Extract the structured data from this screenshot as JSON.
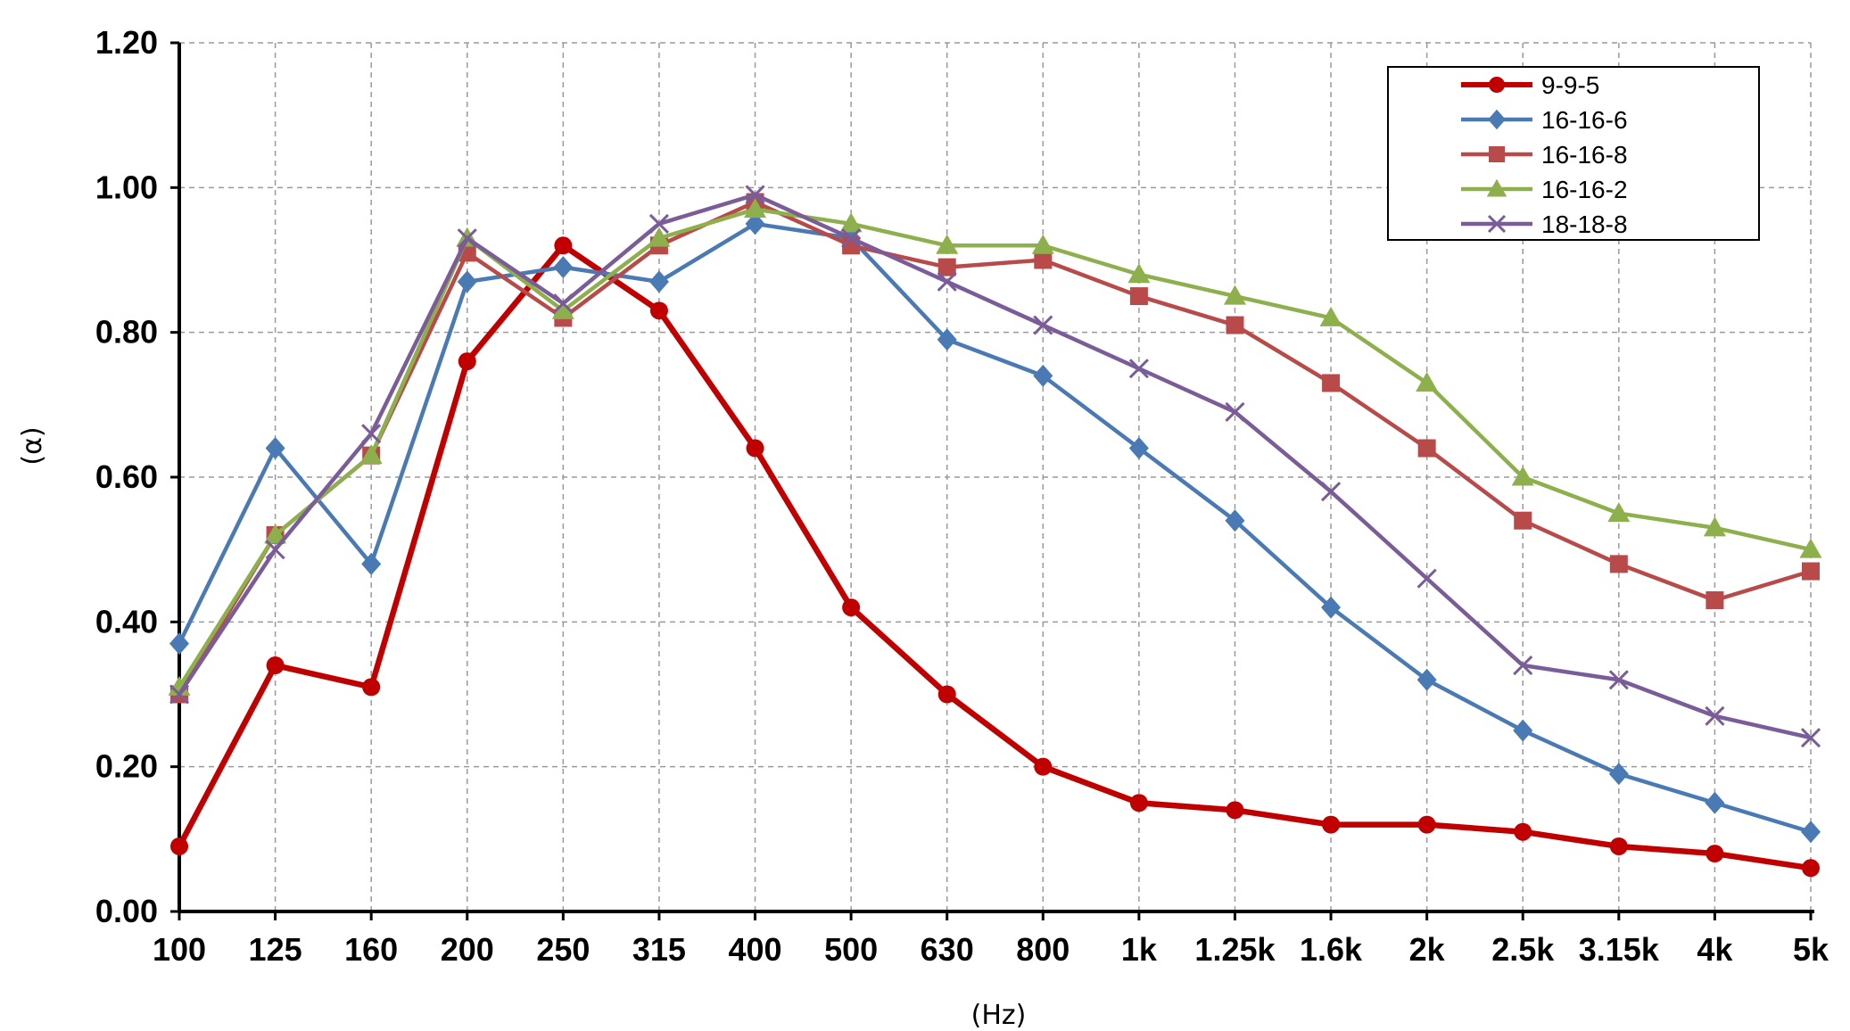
{
  "chart_data": {
    "type": "line",
    "title": "",
    "xlabel": "(Hz)",
    "ylabel": "(α)",
    "categories": [
      "100",
      "125",
      "160",
      "200",
      "250",
      "315",
      "400",
      "500",
      "630",
      "800",
      "1k",
      "1.25k",
      "1.6k",
      "2k",
      "2.5k",
      "3.15k",
      "4k",
      "5k"
    ],
    "ylim": [
      0,
      1.2
    ],
    "yticks": [
      "0.00",
      "0.20",
      "0.40",
      "0.60",
      "0.80",
      "1.00",
      "1.20"
    ],
    "grid": true,
    "legend_position": "top-right",
    "series": [
      {
        "name": "9-9-5",
        "color": "#c00000",
        "marker": "circle",
        "values": [
          0.09,
          0.34,
          0.31,
          0.76,
          0.92,
          0.83,
          0.64,
          0.42,
          0.3,
          0.2,
          0.15,
          0.14,
          0.12,
          0.12,
          0.11,
          0.09,
          0.08,
          0.06
        ]
      },
      {
        "name": "16-16-6",
        "color": "#4a7ab4",
        "marker": "diamond",
        "values": [
          0.37,
          0.64,
          0.48,
          0.87,
          0.89,
          0.87,
          0.95,
          0.93,
          0.79,
          0.74,
          0.64,
          0.54,
          0.42,
          0.32,
          0.25,
          0.19,
          0.15,
          0.11
        ]
      },
      {
        "name": "16-16-8",
        "color": "#b84a4a",
        "marker": "square",
        "values": [
          0.3,
          0.52,
          0.63,
          0.91,
          0.82,
          0.92,
          0.98,
          0.92,
          0.89,
          0.9,
          0.85,
          0.81,
          0.73,
          0.64,
          0.54,
          0.48,
          0.43,
          0.47
        ]
      },
      {
        "name": "16-16-2",
        "color": "#8db04c",
        "marker": "triangle",
        "values": [
          0.31,
          0.52,
          0.63,
          0.93,
          0.83,
          0.93,
          0.97,
          0.95,
          0.92,
          0.92,
          0.88,
          0.85,
          0.82,
          0.73,
          0.6,
          0.55,
          0.53,
          0.5
        ]
      },
      {
        "name": "18-18-8",
        "color": "#7a5c98",
        "marker": "x",
        "values": [
          0.3,
          0.5,
          0.66,
          0.93,
          0.84,
          0.95,
          0.99,
          0.93,
          0.87,
          0.81,
          0.75,
          0.69,
          0.58,
          0.46,
          0.34,
          0.32,
          0.27,
          0.24
        ]
      }
    ]
  }
}
